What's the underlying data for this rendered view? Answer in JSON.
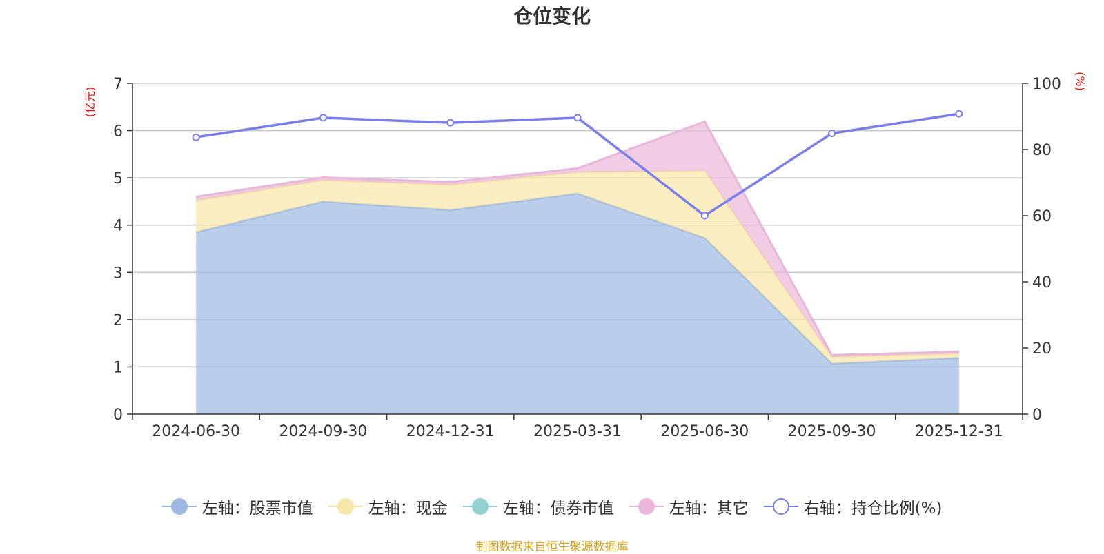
{
  "chart_data": {
    "type": "area",
    "title": "仓位变化",
    "categories": [
      "2024-06-30",
      "2024-09-30",
      "2024-12-31",
      "2025-03-31",
      "2025-06-30",
      "2025-09-30",
      "2025-12-31"
    ],
    "left_axis": {
      "unit": "(亿元)",
      "ylim": [
        0,
        7
      ],
      "ticks": [
        "0",
        "1",
        "2",
        "3",
        "4",
        "5",
        "6",
        "7"
      ]
    },
    "right_axis": {
      "unit": "(%)",
      "ylim": [
        0,
        100
      ],
      "ticks": [
        "0",
        "20",
        "40",
        "60",
        "80",
        "100"
      ]
    },
    "stacked": true,
    "series": [
      {
        "name": "左轴：股票市值",
        "axis": "left",
        "color": "#9db9e2",
        "values": [
          3.85,
          4.5,
          4.32,
          4.67,
          3.73,
          1.07,
          1.19
        ]
      },
      {
        "name": "左轴：现金",
        "axis": "left",
        "color": "#f8e6a8",
        "values": [
          0.67,
          0.45,
          0.53,
          0.45,
          1.42,
          0.14,
          0.09
        ]
      },
      {
        "name": "左轴：债券市值",
        "axis": "left",
        "color": "#92d1d0",
        "values": [
          0,
          0,
          0,
          0,
          0,
          0,
          0
        ]
      },
      {
        "name": "左轴：其它",
        "axis": "left",
        "color": "#e9b6da",
        "values": [
          0.08,
          0.06,
          0.06,
          0.08,
          1.04,
          0.04,
          0.04
        ]
      },
      {
        "name": "右轴：持仓比例(%)",
        "axis": "right",
        "type": "line",
        "color": "#7a7eec",
        "values": [
          83.7,
          89.6,
          88.1,
          89.6,
          60.0,
          84.9,
          90.8
        ]
      }
    ],
    "grid": true,
    "legend_position": "bottom"
  },
  "source_note": "制图数据来自恒生聚源数据库"
}
